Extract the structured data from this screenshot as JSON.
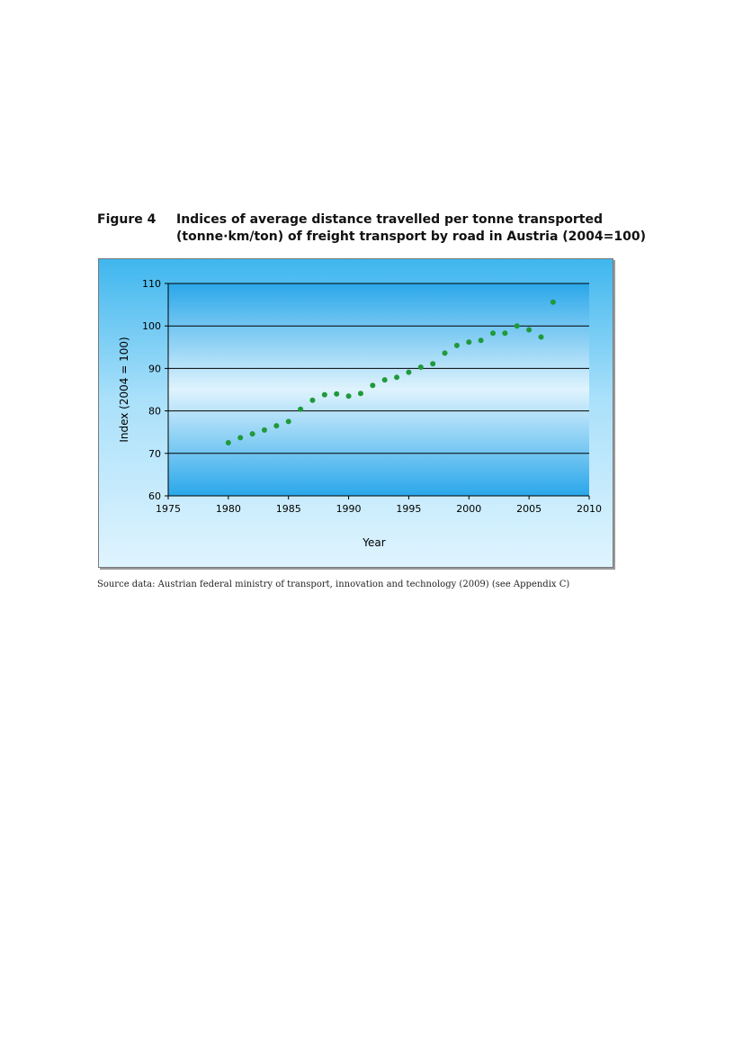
{
  "caption": {
    "label": "Figure 4",
    "title": "Indices of average distance travelled per tonne transported (tonne·km/ton) of freight transport by road in Austria (2004=100)"
  },
  "source": "Source data: Austrian federal ministry of transport, innovation and technology (2009) (see Appendix C)",
  "chart_data": {
    "type": "scatter",
    "title": "",
    "xlabel": "Year",
    "ylabel": "Index (2004 = 100)",
    "xlim": [
      1975,
      2010
    ],
    "ylim": [
      60,
      110
    ],
    "xticks": [
      1975,
      1980,
      1985,
      1990,
      1995,
      2000,
      2005,
      2010
    ],
    "yticks": [
      60,
      70,
      80,
      90,
      100,
      110
    ],
    "grid": "horizontal",
    "legend": "none",
    "marker_color": "#1f9a3a",
    "series": [
      {
        "x": [
          1980,
          1981,
          1982,
          1983,
          1984,
          1985,
          1986,
          1987,
          1988,
          1989,
          1990,
          1991,
          1992,
          1993,
          1994,
          1995,
          1996,
          1997,
          1998,
          1999,
          2000,
          2001,
          2002,
          2003,
          2004,
          2005,
          2006,
          2007
        ],
        "y": [
          72.5,
          73.7,
          74.6,
          75.5,
          76.5,
          77.5,
          80.4,
          82.5,
          83.8,
          84.0,
          83.5,
          84.1,
          86.0,
          87.3,
          87.9,
          89.1,
          90.3,
          91.1,
          93.6,
          95.4,
          96.2,
          96.6,
          98.3,
          98.3,
          100.0,
          99.1,
          97.4,
          105.6
        ]
      }
    ]
  }
}
